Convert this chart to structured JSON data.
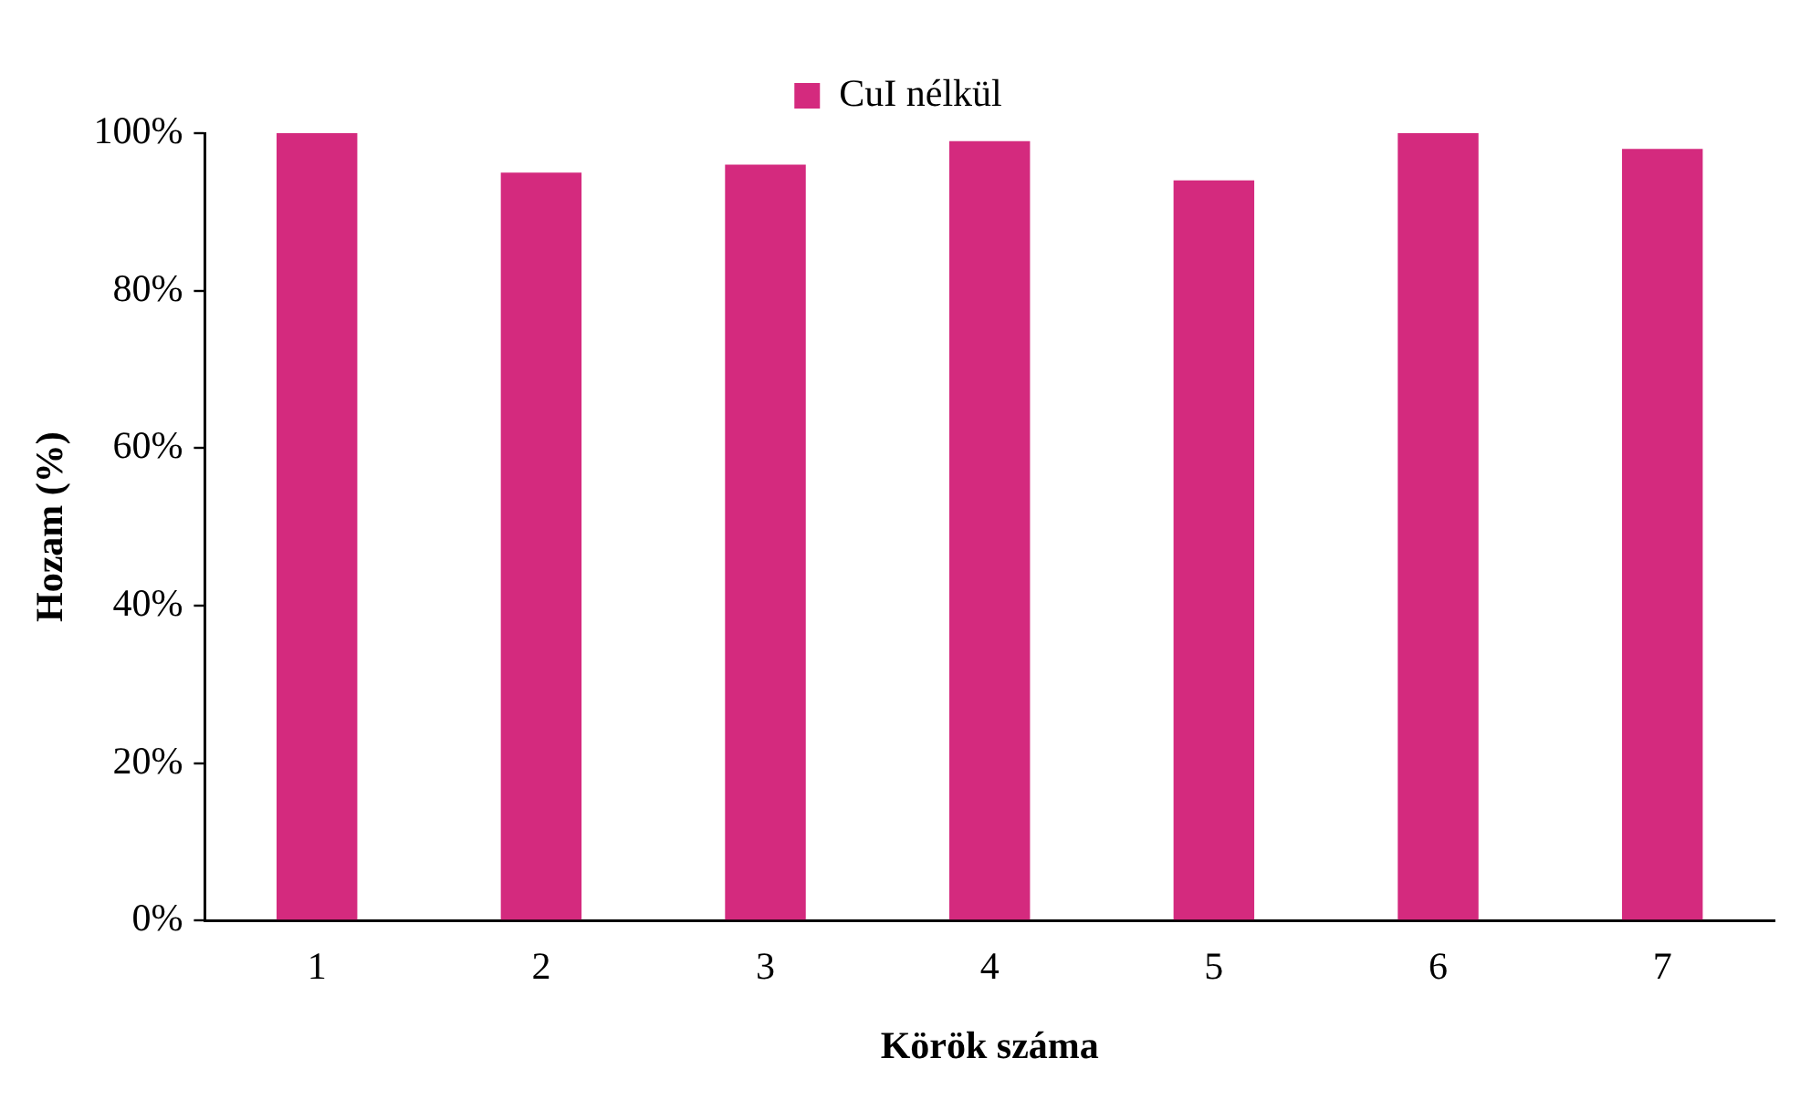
{
  "chart_data": {
    "type": "bar",
    "xlabel": "Körök száma",
    "ylabel": "Hozam (%)",
    "categories": [
      "1",
      "2",
      "3",
      "4",
      "5",
      "6",
      "7"
    ],
    "series": [
      {
        "name": "CuI nélkül",
        "color": "#d42a7e",
        "values": [
          100,
          95,
          96,
          99,
          94,
          100,
          98
        ]
      }
    ],
    "ylim": [
      0,
      100
    ],
    "yticks": [
      {
        "value": 0,
        "label": "0%"
      },
      {
        "value": 20,
        "label": "20%"
      },
      {
        "value": 40,
        "label": "40%"
      },
      {
        "value": 60,
        "label": "60%"
      },
      {
        "value": 80,
        "label": "80%"
      },
      {
        "value": 100,
        "label": "100%"
      }
    ],
    "grid": false,
    "legend": "top"
  }
}
